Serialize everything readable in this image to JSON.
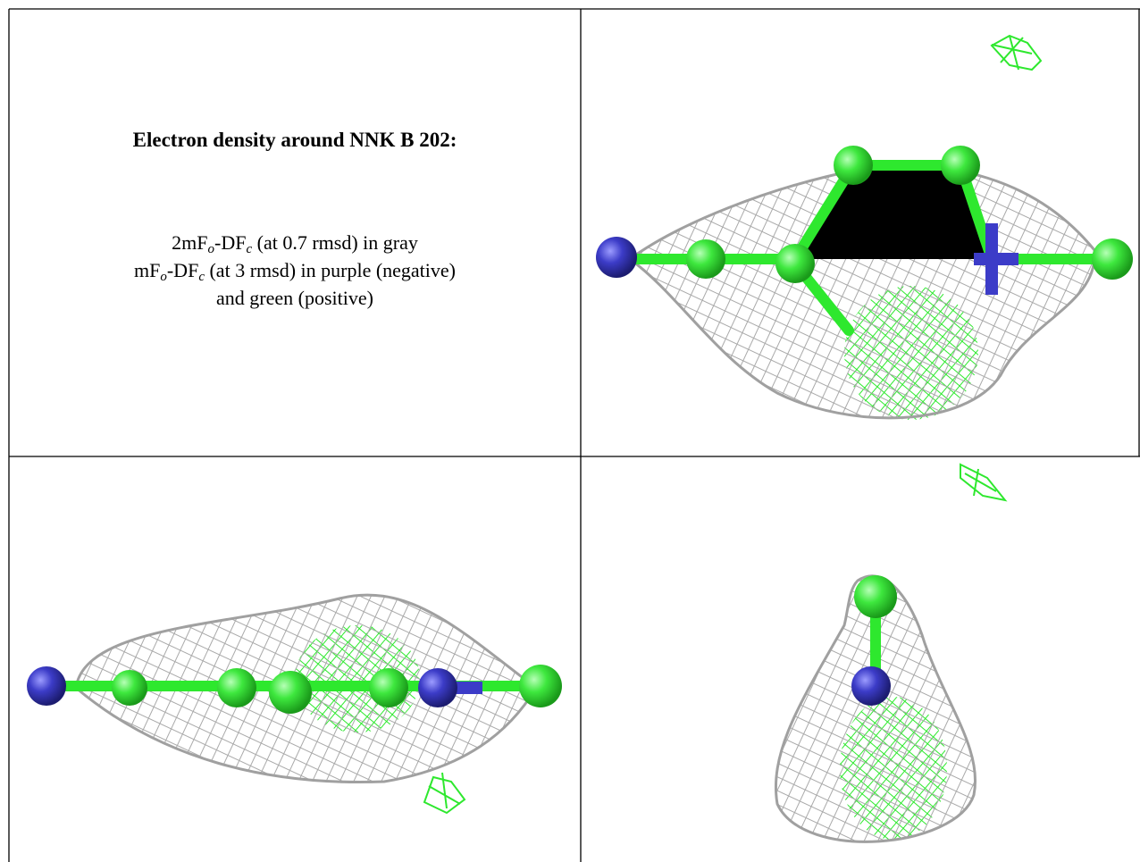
{
  "caption": {
    "title": "Electron density around NNK B 202:",
    "lines": [
      [
        "2mF",
        "o",
        "-DF",
        "c",
        " (at 0.7 rmsd) in gray"
      ],
      [
        "mF",
        "o",
        "-DF",
        "c",
        " (at 3 rmsd) in purple (negative)"
      ],
      [
        "and green (positive)"
      ]
    ]
  }
}
